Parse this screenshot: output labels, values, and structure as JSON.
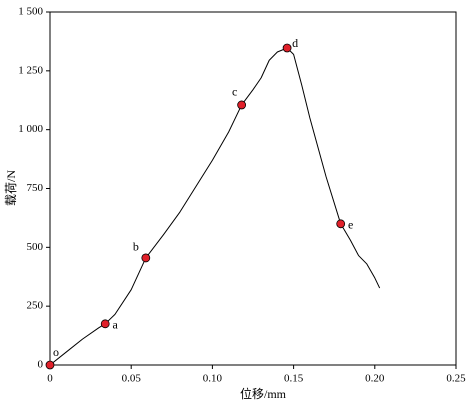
{
  "chart_data": {
    "type": "line",
    "xlabel": "位移/mm",
    "ylabel": "载荷/N",
    "xlim": [
      0,
      0.25
    ],
    "ylim": [
      0,
      1500
    ],
    "xticks": [
      0,
      0.05,
      {
        "value": 0.1,
        "label": "0.10"
      },
      0.15,
      {
        "value": 0.2,
        "label": "0.20"
      },
      0.25
    ],
    "yticks": [
      0,
      250,
      500,
      750,
      {
        "value": 1000,
        "label": "1 000"
      },
      {
        "value": 1250,
        "label": "1 250"
      },
      {
        "value": 1500,
        "label": "1 500"
      }
    ],
    "x": [
      0,
      0.01,
      0.02,
      0.03,
      0.034,
      0.04,
      0.05,
      0.059,
      0.07,
      0.08,
      0.09,
      0.1,
      0.11,
      0.118,
      0.125,
      0.13,
      0.135,
      0.14,
      0.146,
      0.15,
      0.155,
      0.16,
      0.17,
      0.179,
      0.185,
      0.19,
      0.195,
      0.2,
      0.203
    ],
    "series": [
      {
        "color": "#000000",
        "values": [
          0,
          55,
          110,
          158,
          175,
          215,
          320,
          455,
          555,
          650,
          760,
          870,
          990,
          1105,
          1170,
          1220,
          1295,
          1330,
          1347,
          1320,
          1190,
          1050,
          800,
          600,
          530,
          465,
          430,
          370,
          327
        ]
      }
    ],
    "markers": {
      "color": "#e0202a",
      "labels": [
        "o",
        "a",
        "b",
        "c",
        "d",
        "e"
      ],
      "x": [
        0,
        0.034,
        0.059,
        0.118,
        0.146,
        0.179
      ],
      "values": [
        0,
        175,
        455,
        1105,
        1347,
        600
      ]
    }
  }
}
